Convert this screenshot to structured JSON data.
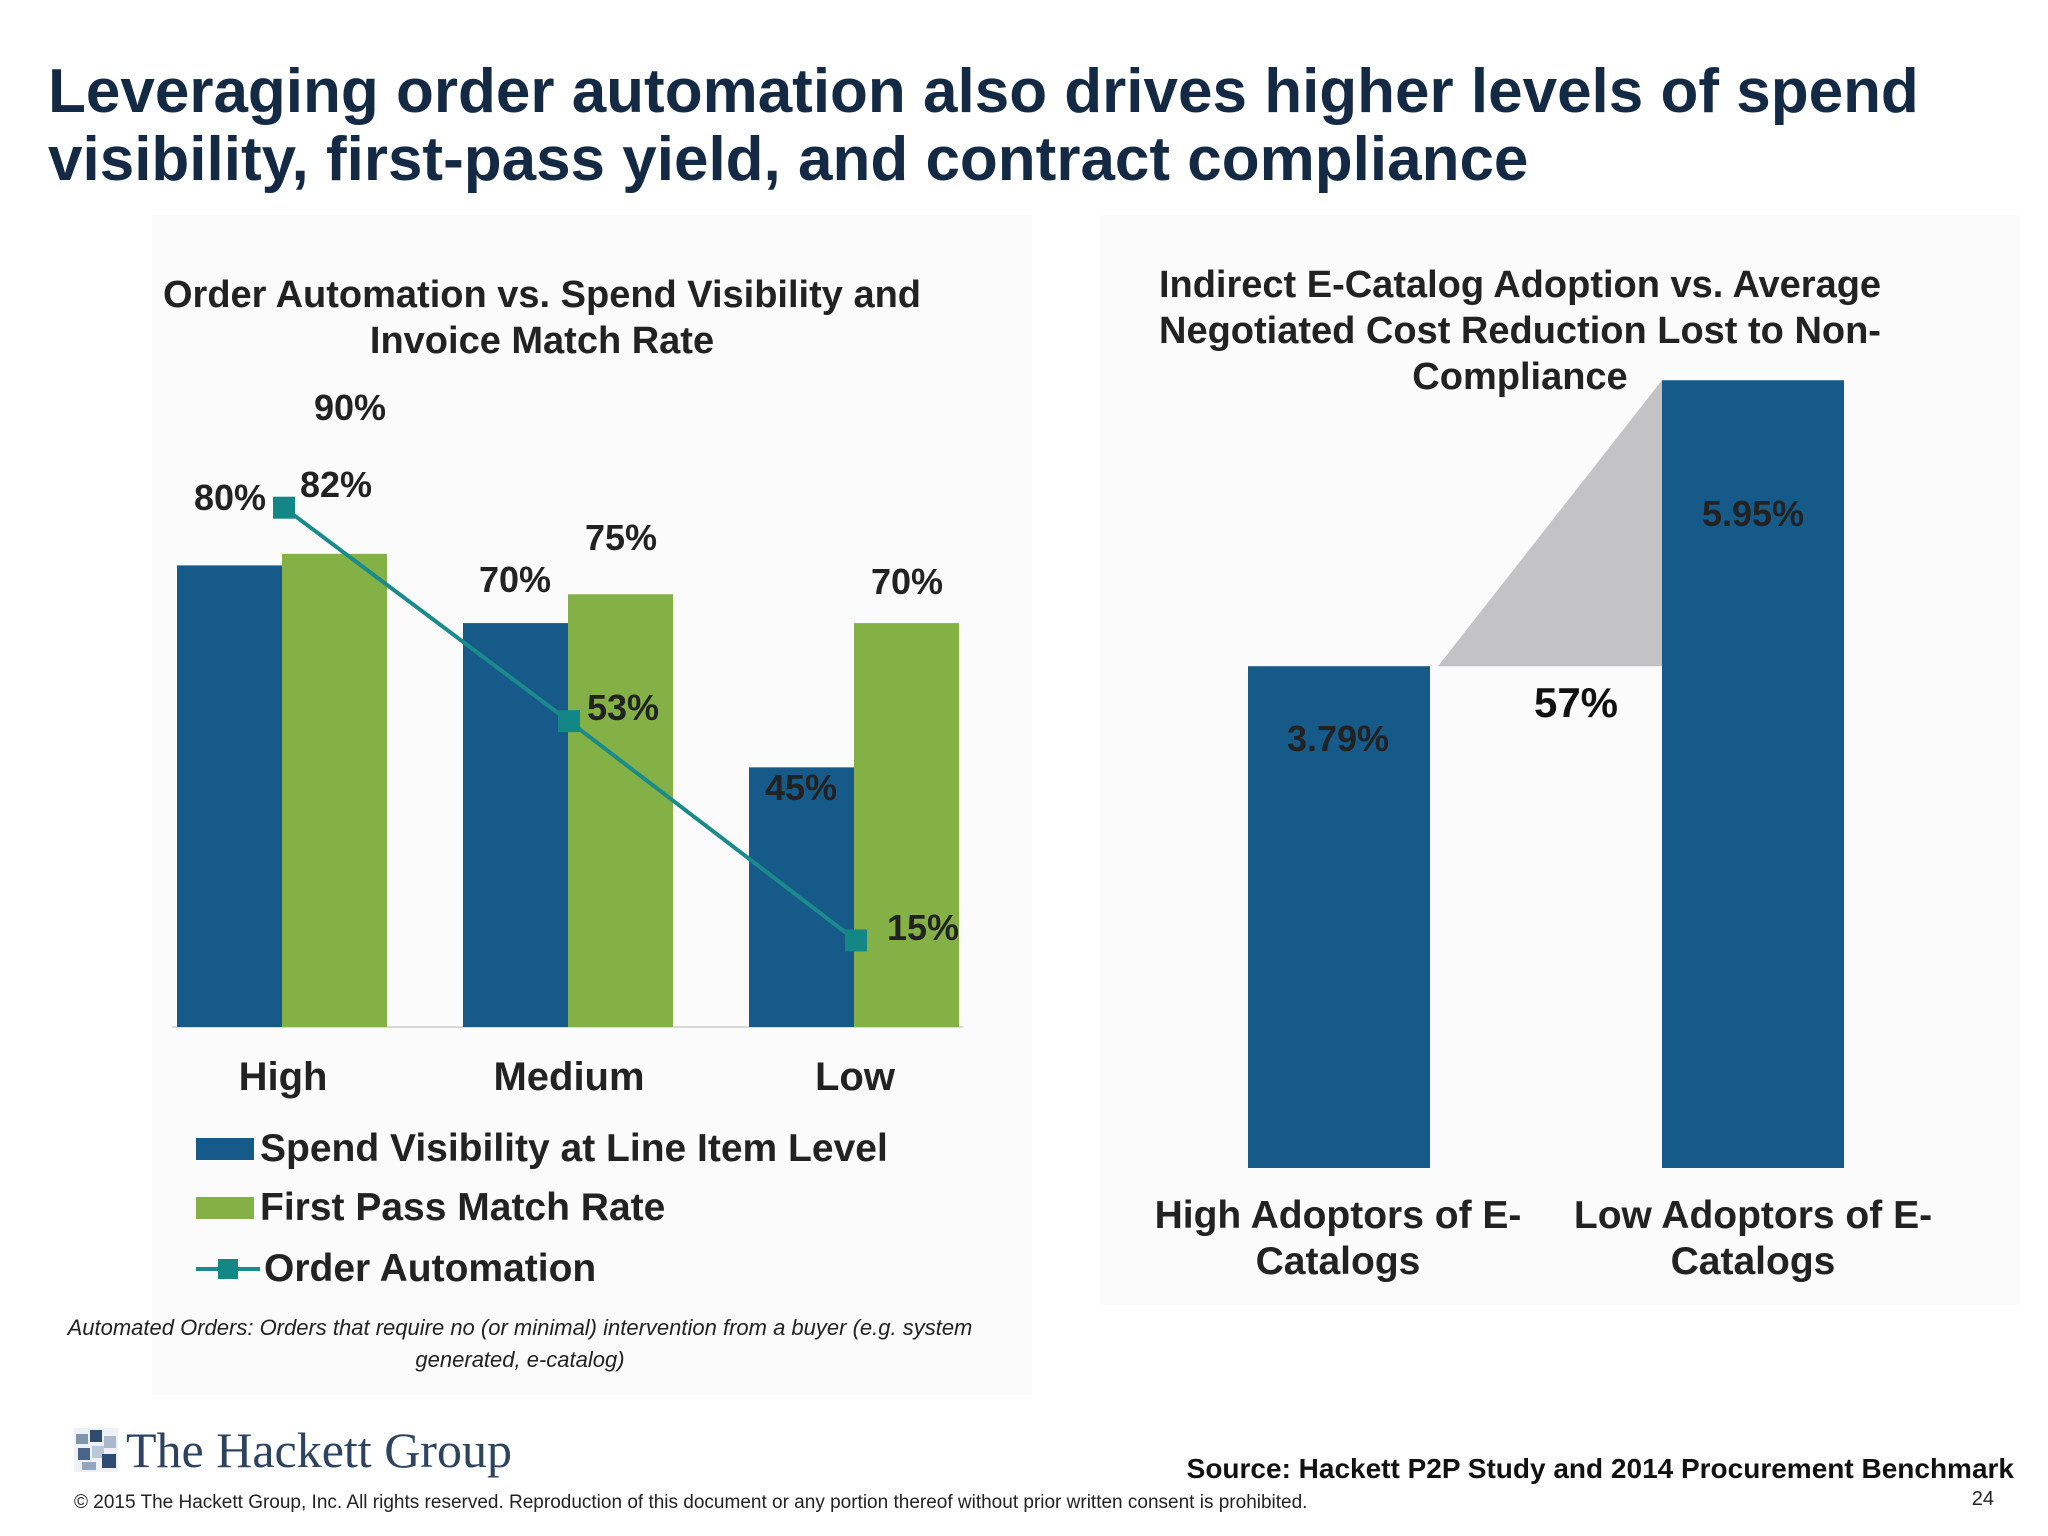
{
  "slide": {
    "title": "Leveraging order automation also drives higher levels of spend visibility, first-pass yield, and contract compliance",
    "footnote": "Automated Orders: Orders that require no (or minimal) intervention from a buyer (e.g. system generated, e-catalog)",
    "logo_text": "The Hackett Group",
    "source": "Source:  Hackett P2P Study and 2014 Procurement Benchmark",
    "copyright": "© 2015 The Hackett Group, Inc.  All rights reserved. Reproduction of this document or any portion thereof without prior written consent is prohibited.",
    "page_number": "24"
  },
  "colors": {
    "title": "#142a44",
    "spend_visibility": "#165a8a",
    "first_pass": "#84b145",
    "order_automation": "#1b8a8a",
    "gap": "#c3c2c4"
  },
  "chart_data": [
    {
      "type": "bar",
      "title": "Order Automation vs. Spend Visibility and Invoice Match Rate",
      "categories": [
        "High",
        "Medium",
        "Low"
      ],
      "ylim": [
        0,
        100
      ],
      "series": [
        {
          "name": "Spend Visibility at Line Item Level",
          "type": "bar",
          "values": [
            80,
            70,
            45
          ],
          "labels": [
            "80%",
            "70%",
            "45%"
          ]
        },
        {
          "name": "First Pass Match Rate",
          "type": "bar",
          "values": [
            82,
            75,
            70
          ],
          "labels": [
            "82%",
            "75%",
            "70%"
          ]
        },
        {
          "name": "Order Automation",
          "type": "line",
          "values": [
            90,
            53,
            15
          ],
          "labels": [
            "90%",
            "53%",
            "15%"
          ]
        }
      ],
      "legend_position": "bottom"
    },
    {
      "type": "bar",
      "title": "Indirect E-Catalog Adoption vs. Average Negotiated Cost Reduction Lost to Non-Compliance",
      "categories": [
        "High Adoptors of E-Catalogs",
        "Low Adoptors of E-Catalogs"
      ],
      "ylim": [
        0,
        7
      ],
      "series": [
        {
          "name": "Average Negotiated Cost Reduction Lost to Non-Compliance",
          "values": [
            3.79,
            5.95
          ],
          "labels": [
            "3.79%",
            "5.95%"
          ]
        }
      ],
      "annotation": "57%"
    }
  ]
}
